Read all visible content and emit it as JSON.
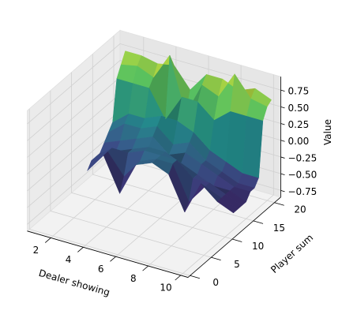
{
  "chart_data": {
    "type": "surface",
    "colormap": "viridis",
    "xlabel": "Dealer showing",
    "ylabel": "Player sum",
    "zlabel": "Value",
    "x": [
      1,
      2,
      3,
      4,
      5,
      6,
      7,
      8,
      9,
      10
    ],
    "y": [
      12,
      13,
      14,
      15,
      16,
      17,
      18,
      19,
      20,
      21
    ],
    "z": [
      [
        -0.6,
        -0.3,
        -0.8,
        -0.3,
        -0.2,
        -0.3,
        -0.8,
        -0.3,
        -0.5,
        -0.6
      ],
      [
        -0.5,
        -0.3,
        -0.6,
        -0.3,
        -0.2,
        -0.2,
        -0.7,
        -0.4,
        -0.5,
        -0.6
      ],
      [
        -0.5,
        -0.3,
        -0.3,
        -0.2,
        -0.2,
        -0.2,
        -0.4,
        -0.4,
        -0.5,
        -0.6
      ],
      [
        -0.5,
        -0.4,
        -0.3,
        -0.2,
        -0.2,
        -0.3,
        -0.4,
        -0.5,
        -0.5,
        -0.6
      ],
      [
        -0.4,
        -0.3,
        -0.2,
        -0.1,
        -0.3,
        -0.2,
        -0.3,
        -0.4,
        -0.5,
        -0.5
      ],
      [
        -0.3,
        -0.1,
        -0.1,
        0.0,
        -0.2,
        -0.1,
        -0.3,
        -0.4,
        -0.5,
        -0.5
      ],
      [
        -0.2,
        0.0,
        0.0,
        0.1,
        0.1,
        0.0,
        -0.2,
        -0.3,
        -0.4,
        -0.4
      ],
      [
        0.4,
        0.4,
        0.4,
        0.0,
        0.4,
        0.4,
        0.2,
        0.4,
        0.4,
        0.4
      ],
      [
        0.55,
        0.6,
        0.5,
        0.9,
        0.1,
        0.6,
        0.5,
        0.9,
        0.6,
        0.55
      ],
      [
        0.7,
        0.7,
        0.65,
        0.7,
        0.4,
        0.7,
        0.7,
        0.6,
        0.7,
        0.6
      ]
    ],
    "xlim": [
      0.55,
      10.45
    ],
    "ylim": [
      -0.5,
      21.5
    ],
    "zlim": [
      -0.85,
      0.95
    ],
    "xticks": [
      2,
      4,
      6,
      8,
      10
    ],
    "yticks": [
      0,
      5,
      10,
      15,
      20
    ],
    "zticks": [
      {
        "value": -0.75,
        "label": "−0.75"
      },
      {
        "value": -0.5,
        "label": "−0.50"
      },
      {
        "value": -0.25,
        "label": "−0.25"
      },
      {
        "value": 0,
        "label": "0.00"
      },
      0.25,
      {
        "value": 0.5,
        "label": "0.50"
      },
      0.75
    ],
    "grid": true
  }
}
